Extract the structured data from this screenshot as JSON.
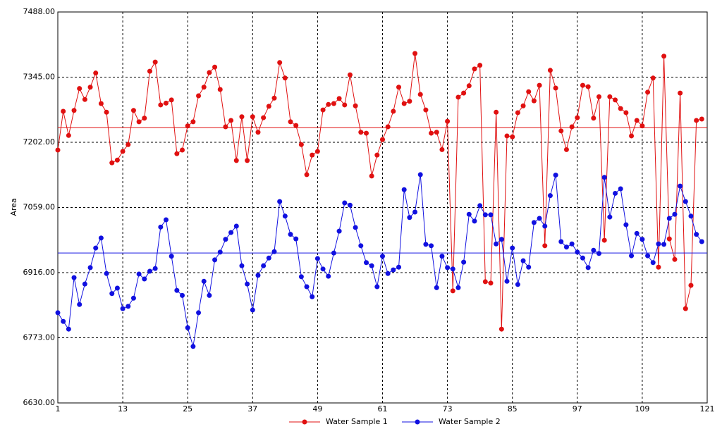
{
  "chart_data": {
    "type": "line",
    "y_label": "Area",
    "x": [
      1,
      2,
      3,
      4,
      5,
      6,
      7,
      8,
      9,
      10,
      11,
      12,
      13,
      14,
      15,
      16,
      17,
      18,
      19,
      20,
      21,
      22,
      23,
      24,
      25,
      26,
      27,
      28,
      29,
      30,
      31,
      32,
      33,
      34,
      35,
      36,
      37,
      38,
      39,
      40,
      41,
      42,
      43,
      44,
      45,
      46,
      47,
      48,
      49,
      50,
      51,
      52,
      53,
      54,
      55,
      56,
      57,
      58,
      59,
      60,
      61,
      62,
      63,
      64,
      65,
      66,
      67,
      68,
      69,
      70,
      71,
      72,
      73,
      74,
      75,
      76,
      77,
      78,
      79,
      80,
      81,
      82,
      83,
      84,
      85,
      86,
      87,
      88,
      89,
      90,
      91,
      92,
      93,
      94,
      95,
      96,
      97,
      98,
      99,
      100,
      101,
      102,
      103,
      104,
      105,
      106,
      107,
      108,
      109,
      110,
      111,
      112,
      113,
      114,
      115,
      116,
      117,
      118,
      119,
      120
    ],
    "series": [
      {
        "name": "Water Sample 1",
        "color": "#e01010",
        "mean": 7234,
        "values": [
          7185,
          7270,
          7217,
          7272,
          7320,
          7296,
          7323,
          7354,
          7287,
          7268,
          7157,
          7163,
          7182,
          7197,
          7272,
          7247,
          7255,
          7358,
          7378,
          7284,
          7288,
          7295,
          7177,
          7185,
          7238,
          7247,
          7304,
          7323,
          7355,
          7367,
          7318,
          7236,
          7250,
          7162,
          7258,
          7162,
          7258,
          7224,
          7256,
          7281,
          7299,
          7377,
          7343,
          7247,
          7239,
          7197,
          7131,
          7174,
          7182,
          7273,
          7285,
          7287,
          7298,
          7284,
          7350,
          7282,
          7224,
          7222,
          7128,
          7174,
          7208,
          7236,
          7270,
          7323,
          7287,
          7292,
          7397,
          7307,
          7273,
          7222,
          7224,
          7186,
          7248,
          6876,
          7301,
          7310,
          7326,
          7363,
          7371,
          6896,
          6893,
          7268,
          6792,
          7216,
          7214,
          7267,
          7282,
          7313,
          7293,
          7327,
          6975,
          7360,
          7321,
          7227,
          7186,
          7236,
          7256,
          7327,
          7324,
          7255,
          7302,
          6987,
          7302,
          7295,
          7276,
          7267,
          7216,
          7250,
          7238,
          7312,
          7343,
          6928,
          7391,
          6990,
          6945,
          7310,
          6837,
          6888,
          7250,
          7253
        ]
      },
      {
        "name": "Water Sample 2",
        "color": "#1010e0",
        "mean": 6959,
        "values": [
          6828,
          6809,
          6792,
          6905,
          6846,
          6891,
          6927,
          6970,
          6992,
          6914,
          6870,
          6882,
          6837,
          6842,
          6860,
          6913,
          6902,
          6919,
          6925,
          7016,
          7032,
          6952,
          6877,
          6866,
          6795,
          6754,
          6828,
          6897,
          6866,
          6944,
          6961,
          6989,
          7004,
          7018,
          6931,
          6891,
          6834,
          6910,
          6931,
          6948,
          6962,
          7072,
          7040,
          7000,
          6990,
          6907,
          6885,
          6863,
          6947,
          6924,
          6908,
          6959,
          7007,
          7069,
          7064,
          7015,
          6975,
          6938,
          6931,
          6885,
          6952,
          6914,
          6922,
          6928,
          7098,
          7037,
          7049,
          7131,
          6978,
          6975,
          6883,
          6952,
          6927,
          6924,
          6883,
          6939,
          7044,
          7029,
          7063,
          7043,
          7043,
          6979,
          6989,
          6897,
          6970,
          6890,
          6942,
          6928,
          7026,
          7035,
          7018,
          7085,
          7130,
          6984,
          6972,
          6979,
          6961,
          6948,
          6927,
          6965,
          6958,
          7125,
          7038,
          7090,
          7100,
          7021,
          6953,
          7002,
          6989,
          6953,
          6938,
          6979,
          6978,
          7035,
          7044,
          7106,
          7072,
          7040,
          7000,
          6984
        ]
      }
    ],
    "xlim": [
      1,
      121
    ],
    "xticks": [
      1,
      13,
      25,
      37,
      49,
      61,
      73,
      85,
      97,
      109,
      121
    ],
    "ylim": [
      6630,
      7488
    ],
    "yticks": [
      {
        "value": 6630,
        "label": "6630.00"
      },
      {
        "value": 6773,
        "label": "6773.00"
      },
      {
        "value": 6916,
        "label": "6916.00"
      },
      {
        "value": 7059,
        "label": "7059.00"
      },
      {
        "value": 7202,
        "label": "7202.00"
      },
      {
        "value": 7345,
        "label": "7345.00"
      },
      {
        "value": 7488,
        "label": "7488.00"
      }
    ],
    "grid": true,
    "legend": "bottom"
  }
}
